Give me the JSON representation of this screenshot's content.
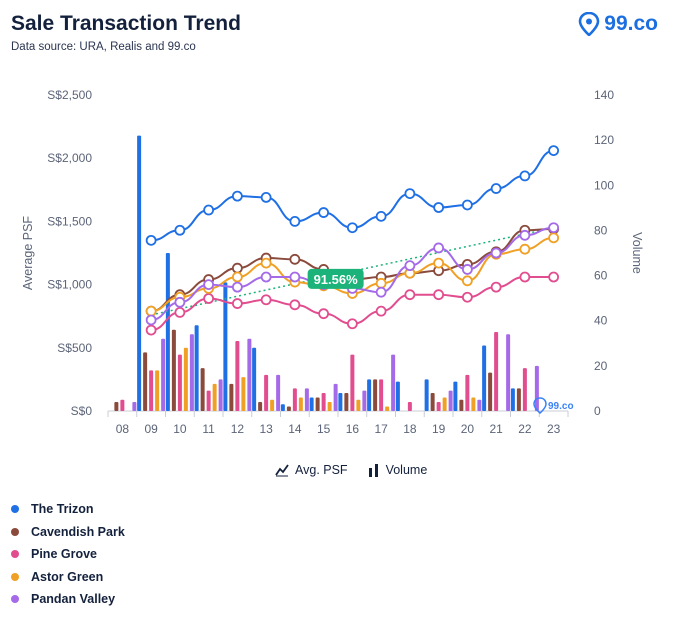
{
  "title": "Sale Transaction Trend",
  "subtitle": "Data source: URA, Realis and 99.co",
  "brand": {
    "name": "99.co"
  },
  "chart_data": {
    "type": "line+bar",
    "x": [
      "08",
      "09",
      "10",
      "11",
      "12",
      "13",
      "14",
      "15",
      "16",
      "17",
      "18",
      "19",
      "20",
      "21",
      "22",
      "23"
    ],
    "left_axis": {
      "label": "Average PSF",
      "ticks": [
        "S$0",
        "S$500",
        "S$1,000",
        "S$1,500",
        "S$2,000",
        "S$2,500"
      ],
      "range": [
        0,
        2500
      ]
    },
    "right_axis": {
      "label": "Volume",
      "ticks": [
        "0",
        "20",
        "40",
        "60",
        "80",
        "100",
        "120",
        "140"
      ],
      "range": [
        0,
        140
      ]
    },
    "badge": {
      "text": "91.56%",
      "color": "#1bb37a"
    },
    "series": [
      {
        "name": "The Trizon",
        "color": "#1f6fe5",
        "psf": [
          null,
          1350,
          1430,
          1590,
          1700,
          1690,
          1500,
          1570,
          1450,
          1540,
          1720,
          1610,
          1630,
          1760,
          1860,
          2060
        ],
        "volume": [
          0,
          122,
          70,
          38,
          57,
          28,
          3,
          6,
          8,
          14,
          13,
          14,
          13,
          29,
          10,
          0
        ]
      },
      {
        "name": "Cavendish Park",
        "color": "#8a4a3c",
        "psf": [
          null,
          790,
          920,
          1040,
          1130,
          1210,
          1200,
          1120,
          1040,
          1060,
          1090,
          1110,
          1160,
          1260,
          1430,
          1440
        ],
        "volume": [
          4,
          26,
          36,
          19,
          12,
          4,
          2,
          6,
          8,
          14,
          0,
          8,
          5,
          17,
          10,
          0
        ]
      },
      {
        "name": "Pine Grove",
        "color": "#e14d8f",
        "psf": [
          null,
          640,
          780,
          890,
          850,
          880,
          840,
          770,
          690,
          790,
          920,
          920,
          900,
          980,
          1060,
          1060
        ],
        "volume": [
          5,
          18,
          25,
          9,
          31,
          16,
          10,
          8,
          25,
          14,
          4,
          4,
          16,
          35,
          19,
          0
        ]
      },
      {
        "name": "Astor Green",
        "color": "#f0a024",
        "psf": [
          null,
          790,
          900,
          970,
          1060,
          1170,
          1020,
          990,
          930,
          1010,
          1090,
          1170,
          1030,
          1240,
          1280,
          1370
        ],
        "volume": [
          0,
          18,
          28,
          12,
          15,
          5,
          6,
          4,
          5,
          2,
          0,
          6,
          6,
          0,
          0,
          0
        ]
      },
      {
        "name": "Pandan Valley",
        "color": "#a46ae8",
        "psf": [
          null,
          720,
          860,
          1000,
          980,
          1060,
          1060,
          1000,
          970,
          940,
          1150,
          1290,
          1120,
          1250,
          1390,
          1450
        ],
        "volume": [
          4,
          32,
          34,
          14,
          32,
          16,
          10,
          12,
          9,
          25,
          0,
          9,
          5,
          34,
          20,
          0
        ]
      }
    ],
    "legend": {
      "line_label": "Avg. PSF",
      "bar_label": "Volume"
    },
    "grid": false
  }
}
